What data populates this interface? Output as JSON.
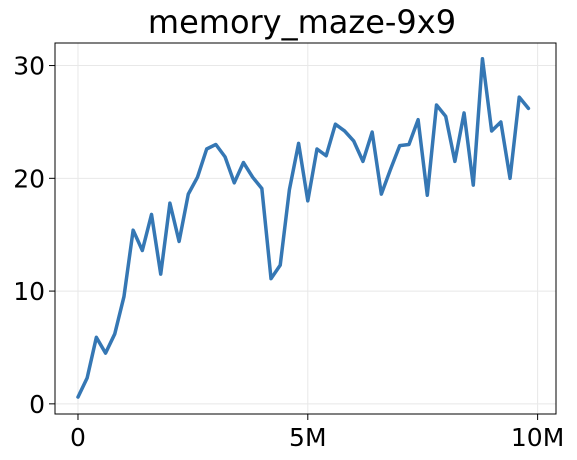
{
  "chart_data": {
    "type": "line",
    "title": "memory_maze-9x9",
    "xlabel": "",
    "ylabel": "",
    "xlim": [
      -500000,
      10400000
    ],
    "ylim": [
      -0.9,
      32.0
    ],
    "grid": true,
    "xticks": [
      {
        "value": 0,
        "label": "0"
      },
      {
        "value": 5000000,
        "label": "5M"
      },
      {
        "value": 10000000,
        "label": "10M"
      }
    ],
    "yticks": [
      {
        "value": 0,
        "label": "0"
      },
      {
        "value": 10,
        "label": "10"
      },
      {
        "value": 20,
        "label": "20"
      },
      {
        "value": 30,
        "label": "30"
      }
    ],
    "series": [
      {
        "color": "#3577b4",
        "points": [
          [
            0,
            0.6
          ],
          [
            200000,
            2.3
          ],
          [
            400000,
            5.9
          ],
          [
            600000,
            4.5
          ],
          [
            800000,
            6.2
          ],
          [
            1000000,
            9.5
          ],
          [
            1200000,
            15.4
          ],
          [
            1400000,
            13.6
          ],
          [
            1600000,
            16.8
          ],
          [
            1800000,
            11.5
          ],
          [
            2000000,
            17.8
          ],
          [
            2200000,
            14.4
          ],
          [
            2400000,
            18.6
          ],
          [
            2600000,
            20.1
          ],
          [
            2800000,
            22.6
          ],
          [
            3000000,
            23.0
          ],
          [
            3200000,
            21.9
          ],
          [
            3400000,
            19.6
          ],
          [
            3600000,
            21.4
          ],
          [
            3800000,
            20.1
          ],
          [
            4000000,
            19.1
          ],
          [
            4200000,
            11.1
          ],
          [
            4400000,
            12.3
          ],
          [
            4600000,
            19.0
          ],
          [
            4800000,
            23.1
          ],
          [
            5000000,
            18.0
          ],
          [
            5200000,
            22.6
          ],
          [
            5400000,
            22.0
          ],
          [
            5600000,
            24.8
          ],
          [
            5800000,
            24.2
          ],
          [
            6000000,
            23.3
          ],
          [
            6200000,
            21.5
          ],
          [
            6400000,
            24.1
          ],
          [
            6600000,
            18.6
          ],
          [
            6800000,
            20.8
          ],
          [
            7000000,
            22.9
          ],
          [
            7200000,
            23.0
          ],
          [
            7400000,
            25.2
          ],
          [
            7600000,
            18.5
          ],
          [
            7800000,
            26.5
          ],
          [
            8000000,
            25.5
          ],
          [
            8200000,
            21.5
          ],
          [
            8400000,
            25.8
          ],
          [
            8600000,
            19.4
          ],
          [
            8800000,
            30.6
          ],
          [
            9000000,
            24.2
          ],
          [
            9200000,
            25.0
          ],
          [
            9400000,
            20.0
          ],
          [
            9600000,
            27.2
          ],
          [
            9800000,
            26.2
          ]
        ]
      }
    ]
  }
}
